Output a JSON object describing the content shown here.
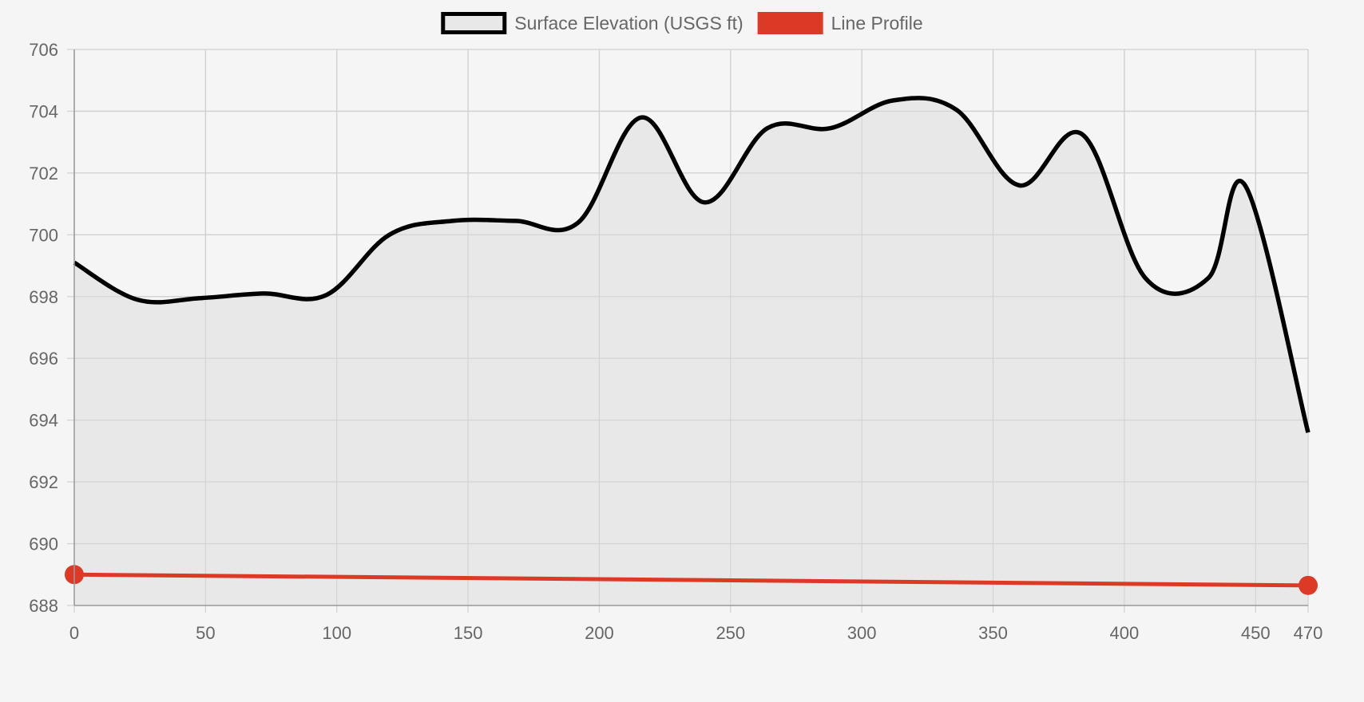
{
  "chart_data": {
    "type": "line",
    "legend": {
      "position": "top-center",
      "items": [
        {
          "label": "Surface Elevation (USGS ft)",
          "swatch": "outline",
          "color": "#000000",
          "fill": "#e8e8e8"
        },
        {
          "label": "Line Profile",
          "swatch": "solid",
          "color": "#dc3a26"
        }
      ]
    },
    "xlim": [
      0,
      470
    ],
    "ylim": [
      688,
      706
    ],
    "x_ticks": [
      0,
      50,
      100,
      150,
      200,
      250,
      300,
      350,
      400,
      450,
      470
    ],
    "y_ticks": [
      688,
      690,
      692,
      694,
      696,
      698,
      700,
      702,
      704,
      706
    ],
    "grid": true,
    "background": "#f5f5f5",
    "series": [
      {
        "name": "Surface Elevation (USGS ft)",
        "color": "#000000",
        "fill": "#e8e8e8",
        "smooth": true,
        "points": [
          [
            0,
            699.1
          ],
          [
            24,
            697.9
          ],
          [
            48,
            697.95
          ],
          [
            72,
            698.1
          ],
          [
            96,
            698.05
          ],
          [
            120,
            700.0
          ],
          [
            144,
            700.45
          ],
          [
            168,
            700.45
          ],
          [
            192,
            700.4
          ],
          [
            216,
            703.8
          ],
          [
            240,
            701.05
          ],
          [
            264,
            703.45
          ],
          [
            288,
            703.45
          ],
          [
            312,
            704.35
          ],
          [
            336,
            704.05
          ],
          [
            360,
            701.6
          ],
          [
            384,
            703.25
          ],
          [
            408,
            698.6
          ],
          [
            432,
            698.6
          ],
          [
            446,
            701.6
          ],
          [
            470,
            693.6
          ]
        ]
      },
      {
        "name": "Line Profile",
        "color": "#dc3a26",
        "markers": true,
        "points": [
          [
            0,
            689.0
          ],
          [
            470,
            688.65
          ]
        ]
      }
    ]
  }
}
